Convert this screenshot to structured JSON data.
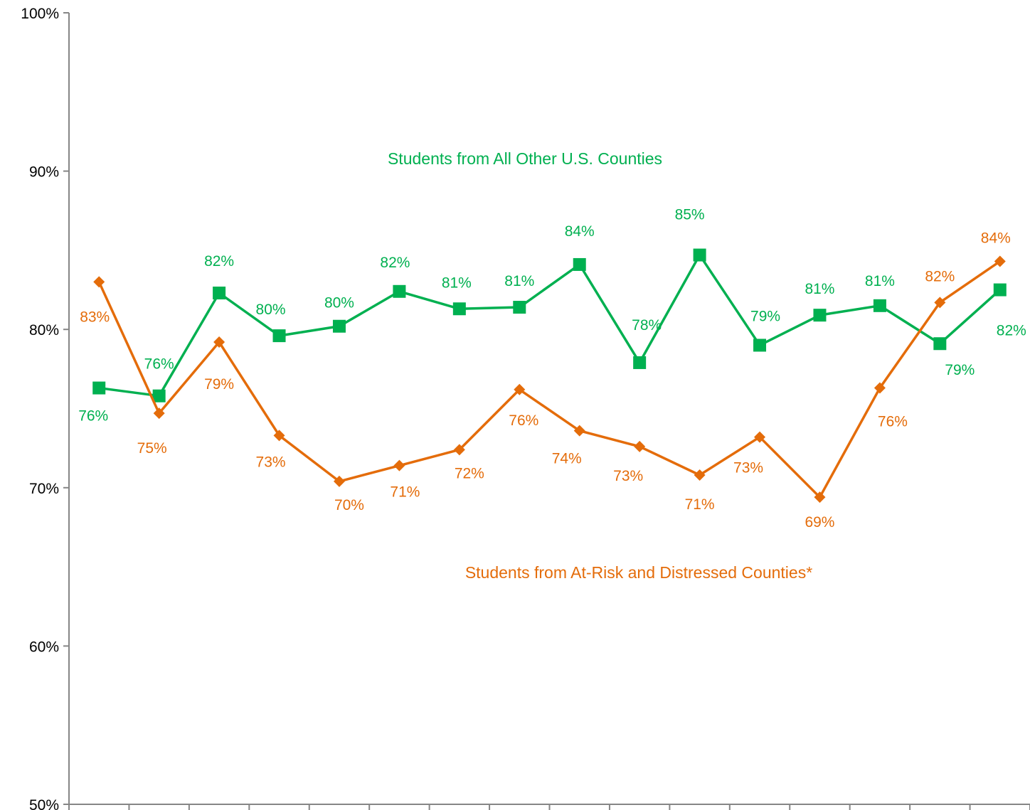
{
  "chart_data": {
    "type": "line",
    "title": "",
    "xlabel": "",
    "ylabel": "",
    "ylim": [
      50,
      100
    ],
    "y_ticks": [
      "50%",
      "60%",
      "70%",
      "80%",
      "90%",
      "100%"
    ],
    "grid": false,
    "x": [
      1,
      2,
      3,
      4,
      5,
      6,
      7,
      8,
      9,
      10,
      11,
      12,
      13,
      14,
      15,
      16
    ],
    "series": [
      {
        "name": "Students from All Other U.S. Counties",
        "color": "#00b050",
        "marker": "square",
        "values": [
          76.3,
          75.8,
          82.3,
          79.6,
          80.2,
          82.4,
          81.3,
          81.4,
          84.1,
          77.9,
          84.7,
          79.0,
          80.9,
          81.5,
          79.1,
          82.5
        ],
        "labels": [
          "76%",
          "76%",
          "82%",
          "80%",
          "80%",
          "82%",
          "81%",
          "81%",
          "84%",
          "78%",
          "85%",
          "79%",
          "81%",
          "81%",
          "79%",
          "82%"
        ]
      },
      {
        "name": "Students from At-Risk and Distressed Counties*",
        "color": "#e46c0a",
        "marker": "diamond",
        "values": [
          83.0,
          74.7,
          79.2,
          73.3,
          70.4,
          71.4,
          72.4,
          76.2,
          73.6,
          72.6,
          70.8,
          73.2,
          69.4,
          76.3,
          81.7,
          84.3
        ],
        "labels": [
          "83%",
          "75%",
          "79%",
          "73%",
          "70%",
          "71%",
          "72%",
          "76%",
          "74%",
          "73%",
          "71%",
          "73%",
          "69%",
          "76%",
          "82%",
          "84%"
        ]
      }
    ]
  }
}
